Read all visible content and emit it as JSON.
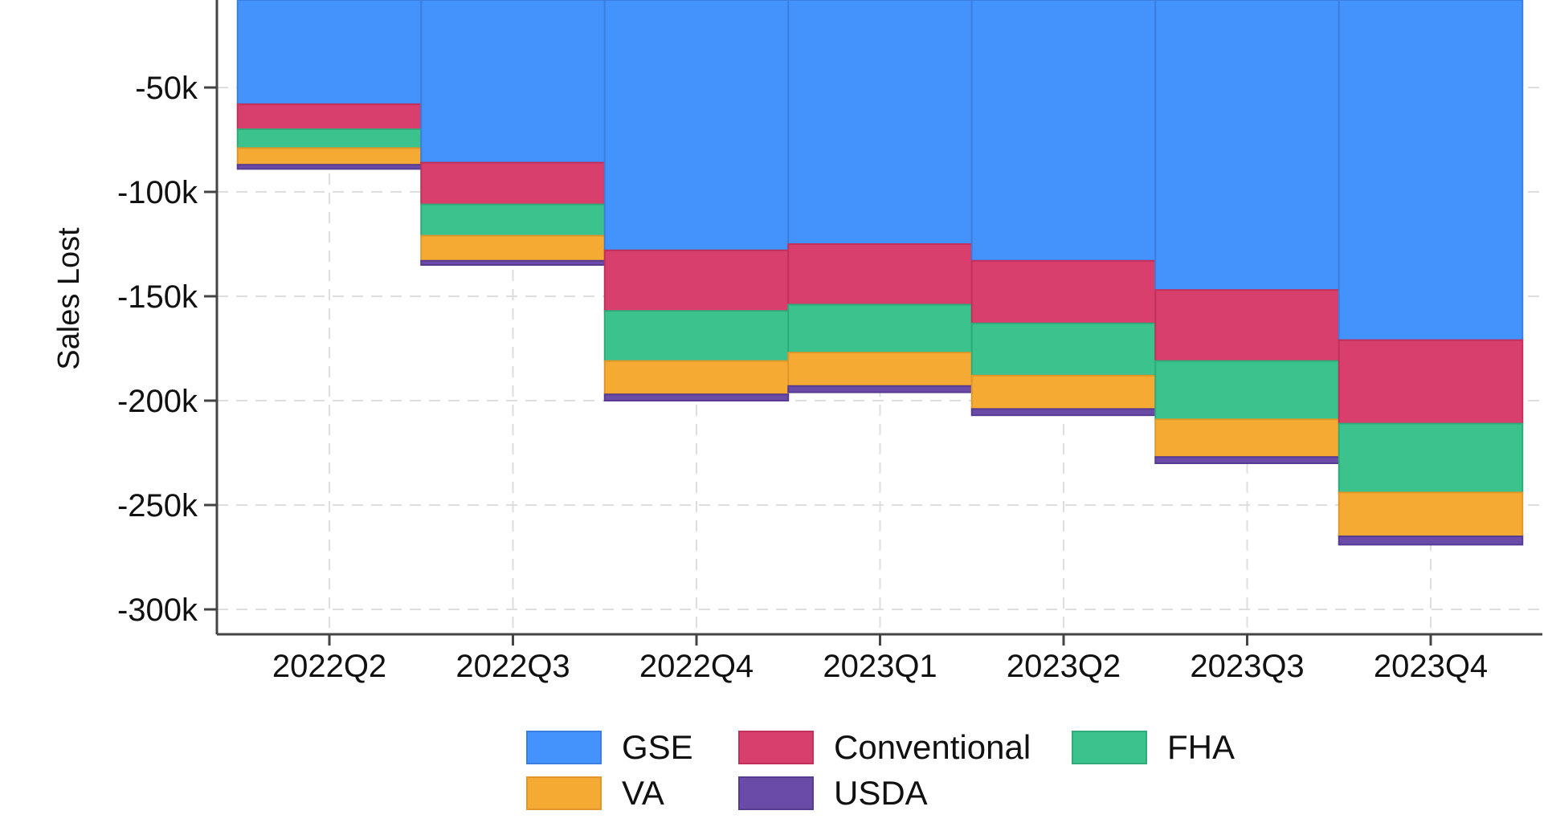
{
  "chart_data": {
    "type": "bar",
    "stacked": true,
    "title": "",
    "xlabel": "",
    "ylabel": "Sales Lost",
    "ylim": [
      -310000,
      0
    ],
    "yticks": [
      -50000,
      -100000,
      -150000,
      -200000,
      -250000,
      -300000
    ],
    "ytick_labels": [
      "-50k",
      "-100k",
      "-150k",
      "-200k",
      "-250k",
      "-300k"
    ],
    "categories": [
      "2022Q2",
      "2022Q3",
      "2022Q4",
      "2023Q1",
      "2023Q2",
      "2023Q3",
      "2023Q4"
    ],
    "grid": true,
    "legend_position": "bottom",
    "series": [
      {
        "name": "GSE",
        "color": "#4492fb",
        "edge": "#3a7fe0",
        "values": [
          -58000,
          -86000,
          -128000,
          -125000,
          -133000,
          -147000,
          -171000
        ]
      },
      {
        "name": "Conventional",
        "color": "#d83f6d",
        "edge": "#c2305c",
        "values": [
          -12000,
          -20000,
          -29000,
          -29000,
          -30000,
          -34000,
          -40000
        ]
      },
      {
        "name": "FHA",
        "color": "#3cc28d",
        "edge": "#2eab79",
        "values": [
          -9000,
          -15000,
          -24000,
          -23000,
          -25000,
          -28000,
          -33000
        ]
      },
      {
        "name": "VA",
        "color": "#f5ab33",
        "edge": "#e0962a",
        "values": [
          -8000,
          -12000,
          -16000,
          -16000,
          -16000,
          -18000,
          -21000
        ]
      },
      {
        "name": "USDA",
        "color": "#6b4ba8",
        "edge": "#573b91",
        "values": [
          -2000,
          -2000,
          -3000,
          -3000,
          -3000,
          -3000,
          -4000
        ]
      }
    ]
  }
}
